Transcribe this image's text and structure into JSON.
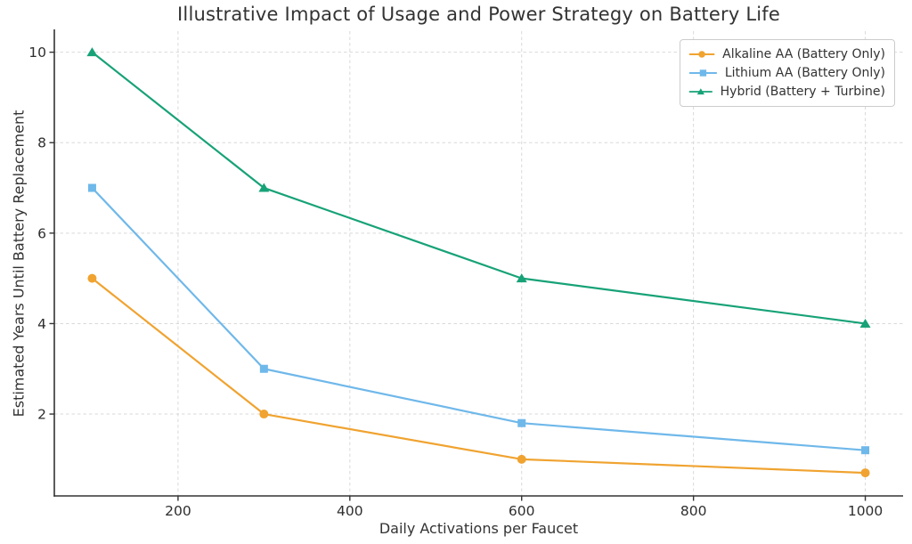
{
  "chart_data": {
    "type": "line",
    "title": "Illustrative Impact of Usage and Power Strategy on Battery Life",
    "xlabel": "Daily Activations per Faucet",
    "ylabel": "Estimated Years Until Battery Replacement",
    "x": [
      100,
      300,
      600,
      1000
    ],
    "series": [
      {
        "name": "Alkaline AA (Battery Only)",
        "values": [
          5,
          2,
          1,
          0.7
        ],
        "color": "#F0A330",
        "marker": "circle"
      },
      {
        "name": "Lithium AA (Battery Only)",
        "values": [
          7,
          3,
          1.8,
          1.2
        ],
        "color": "#6FB8EA",
        "marker": "square"
      },
      {
        "name": "Hybrid (Battery + Turbine)",
        "values": [
          10,
          7,
          5,
          4
        ],
        "color": "#17A277",
        "marker": "triangle"
      }
    ],
    "x_ticks": [
      200,
      400,
      600,
      800,
      1000
    ],
    "y_ticks": [
      2,
      4,
      6,
      8,
      10
    ],
    "xlim": [
      56,
      1044
    ],
    "ylim": [
      0.19,
      10.465
    ],
    "grid": "dashed-both",
    "legend_position": "upper-right"
  },
  "ui": {
    "background_color": "#ffffff",
    "text_color": "#333333",
    "spine_color": "#333333",
    "grid_color": "#d9d9d9",
    "legend_border_color": "#cccccc"
  }
}
